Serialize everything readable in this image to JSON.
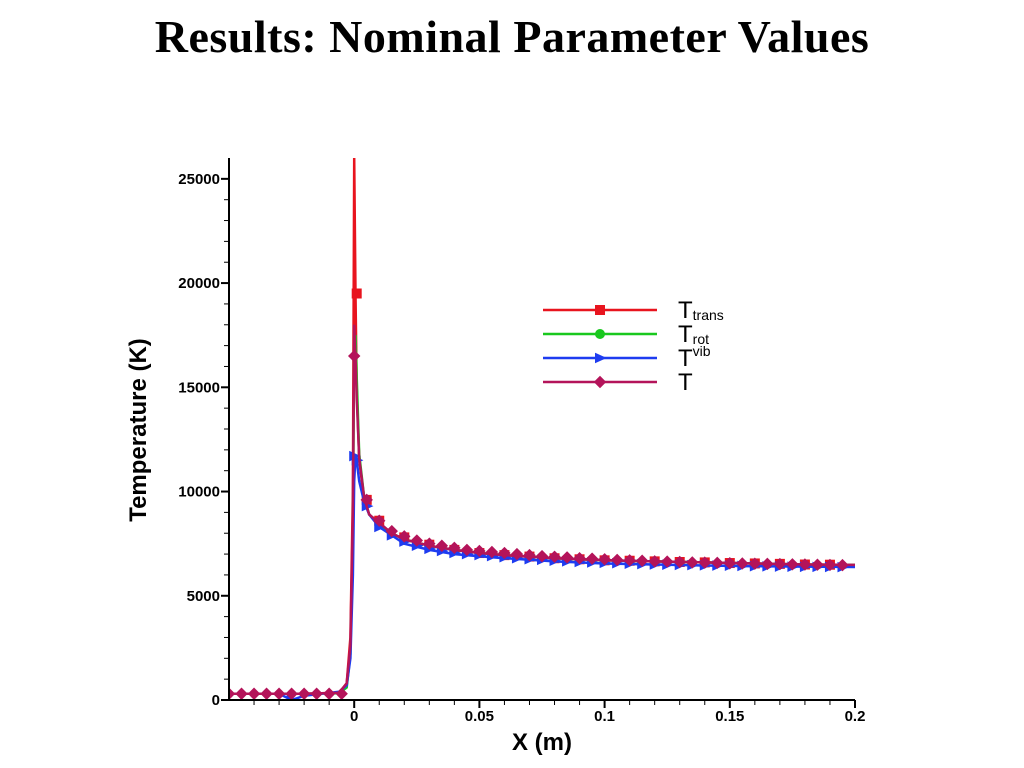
{
  "slide": {
    "title": "Results:  Nominal Parameter Values"
  },
  "chart_data": {
    "type": "line",
    "xlabel": "X (m)",
    "ylabel": "Temperature (K)",
    "xlim": [
      -0.05,
      0.2
    ],
    "ylim": [
      0,
      26000
    ],
    "x_ticks": [
      0,
      0.05,
      0.1,
      0.15,
      0.2
    ],
    "x_tick_labels": [
      "0",
      "0.05",
      "0.1",
      "0.15",
      "0.2"
    ],
    "y_ticks": [
      0,
      5000,
      10000,
      15000,
      20000,
      25000
    ],
    "y_tick_labels": [
      "0",
      "5000",
      "10000",
      "15000",
      "20000",
      "25000"
    ],
    "grid": false,
    "legend_position": "top-right",
    "series": [
      {
        "name_main": "T",
        "name_sub": "trans",
        "color": "#e8141e",
        "marker": "square",
        "x": [
          -0.05,
          -0.02,
          -0.006,
          -0.003,
          -0.0015,
          -0.0005,
          0,
          0.0005,
          0.001,
          0.002,
          0.004,
          0.006,
          0.01,
          0.015,
          0.02,
          0.03,
          0.04,
          0.05,
          0.06,
          0.08,
          0.1,
          0.12,
          0.14,
          0.16,
          0.18,
          0.2
        ],
        "y": [
          300,
          300,
          350,
          800,
          3000,
          10000,
          26000,
          19500,
          15000,
          11500,
          9600,
          8900,
          8400,
          8000,
          7700,
          7400,
          7200,
          7050,
          6950,
          6800,
          6700,
          6650,
          6600,
          6550,
          6500,
          6480
        ],
        "marker_x": [
          0.001,
          0.005,
          0.01,
          0.02,
          0.03,
          0.04,
          0.05,
          0.06,
          0.07,
          0.08,
          0.09,
          0.1,
          0.11,
          0.12,
          0.13,
          0.14,
          0.15,
          0.16,
          0.17,
          0.18,
          0.19
        ],
        "marker_y": [
          19500,
          9600,
          8600,
          7800,
          7450,
          7200,
          7050,
          6950,
          6880,
          6800,
          6750,
          6700,
          6680,
          6650,
          6620,
          6600,
          6570,
          6550,
          6530,
          6500,
          6490
        ]
      },
      {
        "name_main": "T",
        "name_sub": "rot",
        "color": "#19c81e",
        "marker": "circle",
        "x": [
          -0.05,
          -0.02,
          -0.006,
          -0.003,
          -0.0015,
          -0.0005,
          0,
          0.0005,
          0.001,
          0.002,
          0.004,
          0.006,
          0.01,
          0.015,
          0.02,
          0.03,
          0.04,
          0.05,
          0.06,
          0.08,
          0.1,
          0.12,
          0.14,
          0.16,
          0.18,
          0.2
        ],
        "y": [
          300,
          300,
          320,
          600,
          2200,
          8000,
          17000,
          17500,
          15500,
          11800,
          9700,
          8900,
          8400,
          8000,
          7700,
          7400,
          7200,
          7050,
          6950,
          6800,
          6700,
          6650,
          6600,
          6550,
          6500,
          6480
        ]
      },
      {
        "name_main": "T",
        "name_sub": "vib",
        "color": "#1e3cf0",
        "marker": "triangle",
        "x": [
          -0.05,
          -0.03,
          -0.025,
          -0.02,
          -0.006,
          -0.003,
          -0.0015,
          -0.0005,
          0,
          0.0005,
          0.001,
          0.002,
          0.004,
          0.006,
          0.01,
          0.015,
          0.02,
          0.03,
          0.04,
          0.05,
          0.06,
          0.08,
          0.1,
          0.12,
          0.14,
          0.16,
          0.18,
          0.2
        ],
        "y": [
          300,
          300,
          0,
          200,
          400,
          700,
          2000,
          6000,
          10500,
          11700,
          11500,
          10500,
          9500,
          8900,
          8300,
          7900,
          7500,
          7200,
          7000,
          6900,
          6800,
          6650,
          6550,
          6500,
          6450,
          6420,
          6400,
          6380
        ],
        "marker_x": [
          -0.025,
          0,
          0.001,
          0.005,
          0.01,
          0.015,
          0.02,
          0.025,
          0.03,
          0.035,
          0.04,
          0.045,
          0.05,
          0.055,
          0.06,
          0.065,
          0.07,
          0.075,
          0.08,
          0.085,
          0.09,
          0.095,
          0.1,
          0.105,
          0.11,
          0.115,
          0.12,
          0.125,
          0.13,
          0.135,
          0.14,
          0.145,
          0.15,
          0.155,
          0.16,
          0.165,
          0.17,
          0.175,
          0.18,
          0.185,
          0.19,
          0.195
        ],
        "marker_y": [
          0,
          11700,
          11500,
          9300,
          8300,
          7900,
          7600,
          7400,
          7250,
          7150,
          7050,
          7000,
          6950,
          6900,
          6850,
          6800,
          6750,
          6720,
          6680,
          6650,
          6620,
          6600,
          6580,
          6560,
          6540,
          6520,
          6500,
          6490,
          6480,
          6470,
          6460,
          6450,
          6440,
          6430,
          6420,
          6410,
          6400,
          6395,
          6390,
          6385,
          6380,
          6375
        ]
      },
      {
        "name_main": "T",
        "name_sub": "",
        "color": "#b4145a",
        "marker": "diamond",
        "x": [
          -0.05,
          -0.02,
          -0.006,
          -0.003,
          -0.0015,
          -0.0005,
          0,
          0.0005,
          0.001,
          0.002,
          0.004,
          0.006,
          0.01,
          0.015,
          0.02,
          0.03,
          0.04,
          0.05,
          0.06,
          0.08,
          0.1,
          0.12,
          0.14,
          0.16,
          0.18,
          0.2
        ],
        "y": [
          300,
          300,
          350,
          800,
          2600,
          9000,
          18000,
          16500,
          14500,
          11600,
          9700,
          8900,
          8500,
          8000,
          7700,
          7400,
          7200,
          7050,
          6950,
          6800,
          6700,
          6650,
          6600,
          6550,
          6500,
          6480
        ],
        "marker_x": [
          -0.05,
          -0.045,
          -0.04,
          -0.035,
          -0.03,
          -0.025,
          -0.02,
          -0.015,
          -0.01,
          -0.005,
          0,
          0.005,
          0.01,
          0.015,
          0.02,
          0.025,
          0.03,
          0.035,
          0.04,
          0.045,
          0.05,
          0.055,
          0.06,
          0.065,
          0.07,
          0.075,
          0.08,
          0.085,
          0.09,
          0.095,
          0.1,
          0.105,
          0.11,
          0.115,
          0.12,
          0.125,
          0.13,
          0.135,
          0.14,
          0.145,
          0.15,
          0.155,
          0.16,
          0.165,
          0.17,
          0.175,
          0.18,
          0.185,
          0.19,
          0.195
        ],
        "marker_y": [
          300,
          300,
          300,
          300,
          300,
          300,
          300,
          300,
          300,
          300,
          16500,
          9600,
          8600,
          8100,
          7850,
          7650,
          7500,
          7400,
          7300,
          7200,
          7150,
          7100,
          7050,
          7000,
          6950,
          6900,
          6870,
          6840,
          6800,
          6780,
          6750,
          6720,
          6700,
          6680,
          6650,
          6640,
          6620,
          6600,
          6590,
          6580,
          6560,
          6550,
          6540,
          6530,
          6520,
          6510,
          6500,
          6490,
          6480,
          6470
        ]
      }
    ]
  }
}
